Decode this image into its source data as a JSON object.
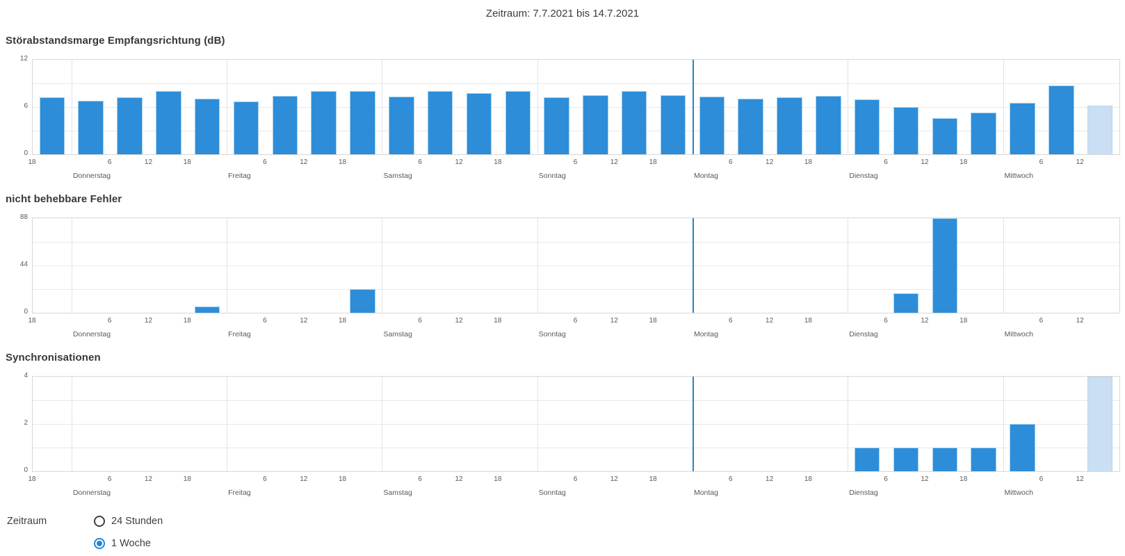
{
  "header": {
    "title": "Zeitraum: 7.7.2021 bis 14.7.2021"
  },
  "x_axis": {
    "start_tick_label": "18",
    "day_tick_labels": [
      "6",
      "12",
      "18"
    ],
    "day_names": [
      "Donnerstag",
      "Freitag",
      "Samstag",
      "Sonntag",
      "Montag",
      "Dienstag",
      "Mittwoch"
    ],
    "slots_per_day": 4,
    "total_slots": 28
  },
  "sync_marker": {
    "slot_boundary": 17,
    "day": "Montag"
  },
  "chart_data": [
    {
      "type": "bar",
      "title": "Störabstandsmarge Empfangsrichtung (dB)",
      "ylim": [
        0,
        12
      ],
      "ytick_labels": [
        "12",
        "6",
        "0"
      ],
      "grid_divisions": 4,
      "categories": [
        "Mi 18-24",
        "Do 00-06",
        "Do 06-12",
        "Do 12-18",
        "Do 18-24",
        "Fr 00-06",
        "Fr 06-12",
        "Fr 12-18",
        "Fr 18-24",
        "Sa 00-06",
        "Sa 06-12",
        "Sa 12-18",
        "Sa 18-24",
        "So 00-06",
        "So 06-12",
        "So 12-18",
        "So 18-24",
        "Mo 00-06",
        "Mo 06-12",
        "Mo 12-18",
        "Mo 18-24",
        "Di 00-06",
        "Di 06-12",
        "Di 12-18",
        "Di 18-24",
        "Mi 00-06",
        "Mi 06-12",
        "Mi 12-18"
      ],
      "values": [
        7.2,
        6.8,
        7.2,
        8.0,
        7.1,
        6.7,
        7.4,
        8.0,
        8.0,
        7.3,
        8.0,
        7.8,
        8.0,
        7.2,
        7.5,
        8.0,
        7.5,
        7.3,
        7.1,
        7.2,
        7.4,
        7.0,
        6.0,
        4.6,
        5.3,
        6.5,
        8.7,
        6.2
      ],
      "current_slot": 27
    },
    {
      "type": "bar",
      "title": "nicht behebbare Fehler",
      "ylim": [
        0,
        88
      ],
      "ytick_labels": [
        "88",
        "44",
        "0"
      ],
      "grid_divisions": 4,
      "categories": [
        "Mi 18-24",
        "Do 00-06",
        "Do 06-12",
        "Do 12-18",
        "Do 18-24",
        "Fr 00-06",
        "Fr 06-12",
        "Fr 12-18",
        "Fr 18-24",
        "Sa 00-06",
        "Sa 06-12",
        "Sa 12-18",
        "Sa 18-24",
        "So 00-06",
        "So 06-12",
        "So 12-18",
        "So 18-24",
        "Mo 00-06",
        "Mo 06-12",
        "Mo 12-18",
        "Mo 18-24",
        "Di 00-06",
        "Di 06-12",
        "Di 12-18",
        "Di 18-24",
        "Mi 00-06",
        "Mi 06-12",
        "Mi 12-18"
      ],
      "values": [
        0,
        0,
        0,
        0,
        6,
        0,
        0,
        0,
        22,
        0,
        0,
        0,
        0,
        0,
        0,
        0,
        0,
        0,
        0,
        0,
        0,
        0,
        18,
        88,
        0,
        0,
        0,
        0
      ],
      "current_slot": 27
    },
    {
      "type": "bar",
      "title": "Synchronisationen",
      "ylim": [
        0,
        4
      ],
      "ytick_labels": [
        "4",
        "2",
        "0"
      ],
      "grid_divisions": 4,
      "categories": [
        "Mi 18-24",
        "Do 00-06",
        "Do 06-12",
        "Do 12-18",
        "Do 18-24",
        "Fr 00-06",
        "Fr 06-12",
        "Fr 12-18",
        "Fr 18-24",
        "Sa 00-06",
        "Sa 06-12",
        "Sa 12-18",
        "Sa 18-24",
        "So 00-06",
        "So 06-12",
        "So 12-18",
        "So 18-24",
        "Mo 00-06",
        "Mo 06-12",
        "Mo 12-18",
        "Mo 18-24",
        "Di 00-06",
        "Di 06-12",
        "Di 12-18",
        "Di 18-24",
        "Mi 00-06",
        "Mi 06-12",
        "Mi 12-18"
      ],
      "values": [
        0,
        0,
        0,
        0,
        0,
        0,
        0,
        0,
        0,
        0,
        0,
        0,
        0,
        0,
        0,
        0,
        0,
        0,
        0,
        0,
        0,
        1,
        1,
        1,
        1,
        2,
        0,
        4
      ],
      "current_slot": 27
    }
  ],
  "controls": {
    "label": "Zeitraum",
    "options": [
      {
        "label": "24 Stunden",
        "selected": false
      },
      {
        "label": "1 Woche",
        "selected": true
      }
    ]
  },
  "colors": {
    "bar": "#2d8dd8",
    "bar_current": "#cadff3",
    "sync_line": "#2583c5",
    "radio_selected": "#2187d8",
    "gridline": "#e8e8e8",
    "plot_border": "#d7d7d7"
  }
}
